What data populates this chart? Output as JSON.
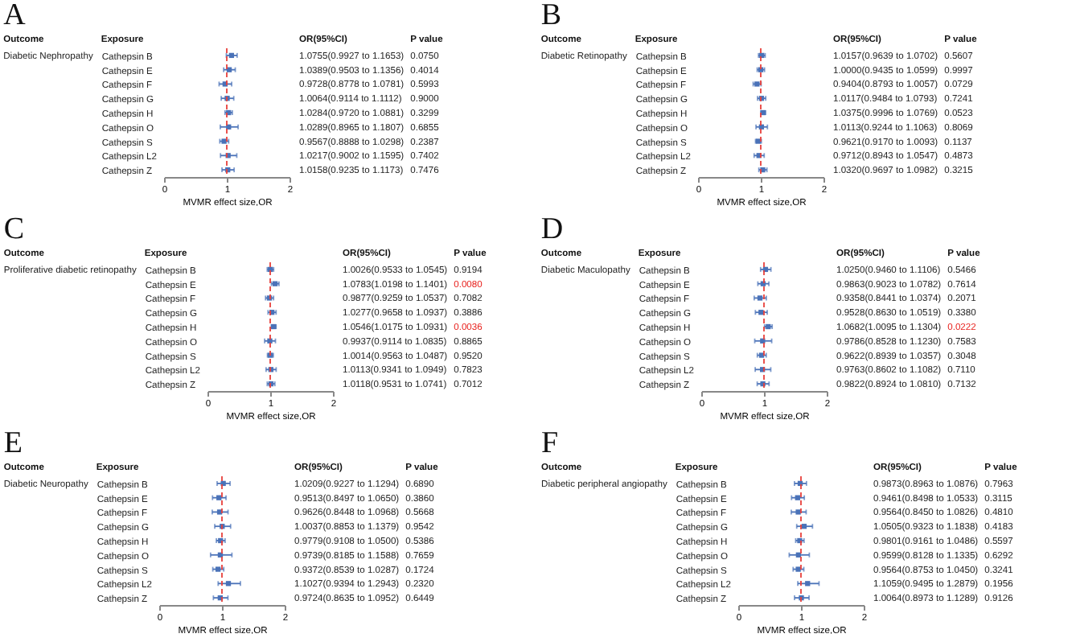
{
  "chart_data": [
    {
      "type": "scatter",
      "title": "A",
      "orientation": "horizontal",
      "xlabel": "MVMR effect size,OR",
      "xlim": [
        0,
        2
      ],
      "xticks": [
        0,
        1,
        2
      ],
      "marker": "square",
      "categories": [
        "Cathepsin B",
        "Cathepsin E",
        "Cathepsin F",
        "Cathepsin G",
        "Cathepsin H",
        "Cathepsin O",
        "Cathepsin S",
        "Cathepsin L2",
        "Cathepsin Z"
      ],
      "series": [
        {
          "color": "#4a72b8",
          "values": [
            1.0755,
            1.0389,
            0.9728,
            1.0064,
            1.0284,
            1.0289,
            0.9567,
            1.0217,
            1.0158
          ],
          "errors": [
            [
              0.9927,
              1.1653
            ],
            [
              0.9503,
              1.1356
            ],
            [
              0.8778,
              1.0781
            ],
            [
              0.9114,
              1.1112
            ],
            [
              0.972,
              1.0881
            ],
            [
              0.8965,
              1.1807
            ],
            [
              0.8888,
              1.0298
            ],
            [
              0.9002,
              1.1595
            ],
            [
              0.9235,
              1.1173
            ]
          ],
          "value_labels": [
            "1.0755(0.9927 to 1.1653)",
            "1.0389(0.9503 to 1.1356)",
            "0.9728(0.8778 to 1.0781)",
            "1.0064(0.9114 to 1.1112)",
            "1.0284(0.9720 to 1.0881)",
            "1.0289(0.8965 to 1.1807)",
            "0.9567(0.8888 to 1.0298)",
            "1.0217(0.9002 to 1.1595)",
            "1.0158(0.9235 to 1.1173)"
          ]
        }
      ],
      "ref_lines": [
        {
          "axis": "x",
          "value": 1,
          "color": "#e8413c",
          "line_style": "dashed"
        }
      ],
      "annotations": [
        "Outcome",
        "Exposure",
        "OR(95%CI)",
        "P value",
        "Diabetic Nephropathy",
        "0.0750",
        "0.4014",
        "0.5993",
        "0.9000",
        "0.3299",
        "0.6855",
        "0.2387",
        "0.7402",
        "0.7476"
      ]
    },
    {
      "type": "scatter",
      "title": "B",
      "orientation": "horizontal",
      "xlabel": "MVMR effect size,OR",
      "xlim": [
        0,
        2
      ],
      "xticks": [
        0,
        1,
        2
      ],
      "marker": "square",
      "categories": [
        "Cathepsin B",
        "Cathepsin E",
        "Cathepsin F",
        "Cathepsin G",
        "Cathepsin H",
        "Cathepsin O",
        "Cathepsin S",
        "Cathepsin L2",
        "Cathepsin Z"
      ],
      "series": [
        {
          "color": "#4a72b8",
          "values": [
            1.0157,
            1.0,
            0.9404,
            1.0117,
            1.0375,
            1.0113,
            0.9621,
            0.9712,
            1.032
          ],
          "errors": [
            [
              0.9639,
              1.0702
            ],
            [
              0.9435,
              1.0599
            ],
            [
              0.8793,
              1.0057
            ],
            [
              0.9484,
              1.0793
            ],
            [
              0.9996,
              1.0769
            ],
            [
              0.9244,
              1.1063
            ],
            [
              0.917,
              1.0093
            ],
            [
              0.8943,
              1.0547
            ],
            [
              0.9697,
              1.0982
            ]
          ],
          "value_labels": [
            "1.0157(0.9639 to 1.0702)",
            "1.0000(0.9435 to 1.0599)",
            "0.9404(0.8793 to 1.0057)",
            "1.0117(0.9484 to 1.0793)",
            "1.0375(0.9996 to 1.0769)",
            "1.0113(0.9244 to 1.1063)",
            "0.9621(0.9170 to 1.0093)",
            "0.9712(0.8943 to 1.0547)",
            "1.0320(0.9697 to 1.0982)"
          ]
        }
      ],
      "ref_lines": [
        {
          "axis": "x",
          "value": 1,
          "color": "#e8413c",
          "line_style": "dashed"
        }
      ],
      "annotations": [
        "Outcome",
        "Exposure",
        "OR(95%CI)",
        "P value",
        "Diabetic Retinopathy",
        "0.5607",
        "0.9997",
        "0.0729",
        "0.7241",
        "0.0523",
        "0.8069",
        "0.1137",
        "0.4873",
        "0.3215"
      ]
    },
    {
      "type": "scatter",
      "title": "C",
      "orientation": "horizontal",
      "xlabel": "MVMR effect size,OR",
      "xlim": [
        0,
        2
      ],
      "xticks": [
        0,
        1,
        2
      ],
      "marker": "square",
      "categories": [
        "Cathepsin B",
        "Cathepsin E",
        "Cathepsin F",
        "Cathepsin G",
        "Cathepsin H",
        "Cathepsin O",
        "Cathepsin S",
        "Cathepsin L2",
        "Cathepsin Z"
      ],
      "series": [
        {
          "color": "#4a72b8",
          "values": [
            1.0026,
            1.0783,
            0.9877,
            1.0277,
            1.0546,
            0.9937,
            1.0014,
            1.0113,
            1.0118
          ],
          "errors": [
            [
              0.9533,
              1.0545
            ],
            [
              1.0198,
              1.1401
            ],
            [
              0.9259,
              1.0537
            ],
            [
              0.9658,
              1.0937
            ],
            [
              1.0175,
              1.0931
            ],
            [
              0.9114,
              1.0835
            ],
            [
              0.9563,
              1.0487
            ],
            [
              0.9341,
              1.0949
            ],
            [
              0.9531,
              1.0741
            ]
          ],
          "value_labels": [
            "1.0026(0.9533 to 1.0545)",
            "1.0783(1.0198 to 1.1401)",
            "0.9877(0.9259 to 1.0537)",
            "1.0277(0.9658 to 1.0937)",
            "1.0546(1.0175 to 1.0931)",
            "0.9937(0.9114 to 1.0835)",
            "1.0014(0.9563 to 1.0487)",
            "1.0113(0.9341 to 1.0949)",
            "1.0118(0.9531 to 1.0741)"
          ]
        }
      ],
      "ref_lines": [
        {
          "axis": "x",
          "value": 1,
          "color": "#e8413c",
          "line_style": "dashed"
        }
      ],
      "annotations": [
        "Outcome",
        "Exposure",
        "OR(95%CI)",
        "P value",
        "Proliferative diabetic retinopathy",
        "0.9194",
        "0.0080",
        "0.7082",
        "0.3886",
        "0.0036",
        "0.8865",
        "0.9520",
        "0.7823",
        "0.7012"
      ]
    },
    {
      "type": "scatter",
      "title": "D",
      "orientation": "horizontal",
      "xlabel": "MVMR effect size,OR",
      "xlim": [
        0,
        2
      ],
      "xticks": [
        0,
        1,
        2
      ],
      "marker": "square",
      "categories": [
        "Cathepsin B",
        "Cathepsin E",
        "Cathepsin F",
        "Cathepsin G",
        "Cathepsin H",
        "Cathepsin O",
        "Cathepsin S",
        "Cathepsin L2",
        "Cathepsin Z"
      ],
      "series": [
        {
          "color": "#4a72b8",
          "values": [
            1.025,
            0.9863,
            0.9358,
            0.9528,
            1.0682,
            0.9786,
            0.9622,
            0.9763,
            0.9822
          ],
          "errors": [
            [
              0.946,
              1.1106
            ],
            [
              0.9023,
              1.0782
            ],
            [
              0.8441,
              1.0374
            ],
            [
              0.863,
              1.0519
            ],
            [
              1.0095,
              1.1304
            ],
            [
              0.8528,
              1.123
            ],
            [
              0.8939,
              1.0357
            ],
            [
              0.8602,
              1.1082
            ],
            [
              0.8924,
              1.081
            ]
          ],
          "value_labels": [
            "1.0250(0.9460 to 1.1106)",
            "0.9863(0.9023 to 1.0782)",
            "0.9358(0.8441 to 1.0374)",
            "0.9528(0.8630 to 1.0519)",
            "1.0682(1.0095 to 1.1304)",
            "0.9786(0.8528 to 1.1230)",
            "0.9622(0.8939 to 1.0357)",
            "0.9763(0.8602 to 1.1082)",
            "0.9822(0.8924 to 1.0810)"
          ]
        }
      ],
      "ref_lines": [
        {
          "axis": "x",
          "value": 1,
          "color": "#e8413c",
          "line_style": "dashed"
        }
      ],
      "annotations": [
        "Outcome",
        "Exposure",
        "OR(95%CI)",
        "P value",
        "Diabetic Maculopathy",
        "0.5466",
        "0.7614",
        "0.2071",
        "0.3380",
        "0.0222",
        "0.7583",
        "0.3048",
        "0.7110",
        "0.7132"
      ]
    },
    {
      "type": "scatter",
      "title": "E",
      "orientation": "horizontal",
      "xlabel": "MVMR effect size,OR",
      "xlim": [
        0,
        2
      ],
      "xticks": [
        0,
        1,
        2
      ],
      "marker": "square",
      "categories": [
        "Cathepsin B",
        "Cathepsin E",
        "Cathepsin F",
        "Cathepsin G",
        "Cathepsin H",
        "Cathepsin O",
        "Cathepsin S",
        "Cathepsin L2",
        "Cathepsin Z"
      ],
      "series": [
        {
          "color": "#4a72b8",
          "values": [
            1.0209,
            0.9513,
            0.9626,
            1.0037,
            0.9779,
            0.9739,
            0.9372,
            1.1027,
            0.9724
          ],
          "errors": [
            [
              0.9227,
              1.1294
            ],
            [
              0.8497,
              1.065
            ],
            [
              0.8448,
              1.0968
            ],
            [
              0.8853,
              1.1379
            ],
            [
              0.9108,
              1.05
            ],
            [
              0.8185,
              1.1588
            ],
            [
              0.8539,
              1.0287
            ],
            [
              0.9394,
              1.2943
            ],
            [
              0.8635,
              1.0952
            ]
          ],
          "value_labels": [
            "1.0209(0.9227 to 1.1294)",
            "0.9513(0.8497 to 1.0650)",
            "0.9626(0.8448 to 1.0968)",
            "1.0037(0.8853 to 1.1379)",
            "0.9779(0.9108 to 1.0500)",
            "0.9739(0.8185 to 1.1588)",
            "0.9372(0.8539 to 1.0287)",
            "1.1027(0.9394 to 1.2943)",
            "0.9724(0.8635 to 1.0952)"
          ]
        }
      ],
      "ref_lines": [
        {
          "axis": "x",
          "value": 1,
          "color": "#e8413c",
          "line_style": "dashed"
        }
      ],
      "annotations": [
        "Outcome",
        "Exposure",
        "OR(95%CI)",
        "P value",
        "Diabetic Neuropathy",
        "0.6890",
        "0.3860",
        "0.5668",
        "0.9542",
        "0.5386",
        "0.7659",
        "0.1724",
        "0.2320",
        "0.6449"
      ]
    },
    {
      "type": "scatter",
      "title": "F",
      "orientation": "horizontal",
      "xlabel": "MVMR effect size,OR",
      "xlim": [
        0,
        2
      ],
      "xticks": [
        0,
        1,
        2
      ],
      "marker": "square",
      "categories": [
        "Cathepsin B",
        "Cathepsin E",
        "Cathepsin F",
        "Cathepsin G",
        "Cathepsin H",
        "Cathepsin O",
        "Cathepsin S",
        "Cathepsin L2",
        "Cathepsin Z"
      ],
      "series": [
        {
          "color": "#4a72b8",
          "values": [
            0.9873,
            0.9461,
            0.9564,
            1.0505,
            0.9801,
            0.9599,
            0.9564,
            1.1059,
            1.0064
          ],
          "errors": [
            [
              0.8963,
              1.0876
            ],
            [
              0.8498,
              1.0533
            ],
            [
              0.845,
              1.0826
            ],
            [
              0.9323,
              1.1838
            ],
            [
              0.9161,
              1.0486
            ],
            [
              0.8128,
              1.1335
            ],
            [
              0.8753,
              1.045
            ],
            [
              0.9495,
              1.2879
            ],
            [
              0.8973,
              1.1289
            ]
          ],
          "value_labels": [
            "0.9873(0.8963 to 1.0876)",
            "0.9461(0.8498 to 1.0533)",
            "0.9564(0.8450 to 1.0826)",
            "1.0505(0.9323 to 1.1838)",
            "0.9801(0.9161 to 1.0486)",
            "0.9599(0.8128 to 1.1335)",
            "0.9564(0.8753 to 1.0450)",
            "1.1059(0.9495 to 1.2879)",
            "1.0064(0.8973 to 1.1289)"
          ]
        }
      ],
      "ref_lines": [
        {
          "axis": "x",
          "value": 1,
          "color": "#e8413c",
          "line_style": "dashed"
        }
      ],
      "annotations": [
        "Outcome",
        "Exposure",
        "OR(95%CI)",
        "P value",
        "Diabetic peripheral angiopathy",
        "0.7963",
        "0.3115",
        "0.4810",
        "0.4183",
        "0.5597",
        "0.6292",
        "0.3241",
        "0.1956",
        "0.9126"
      ]
    }
  ]
}
